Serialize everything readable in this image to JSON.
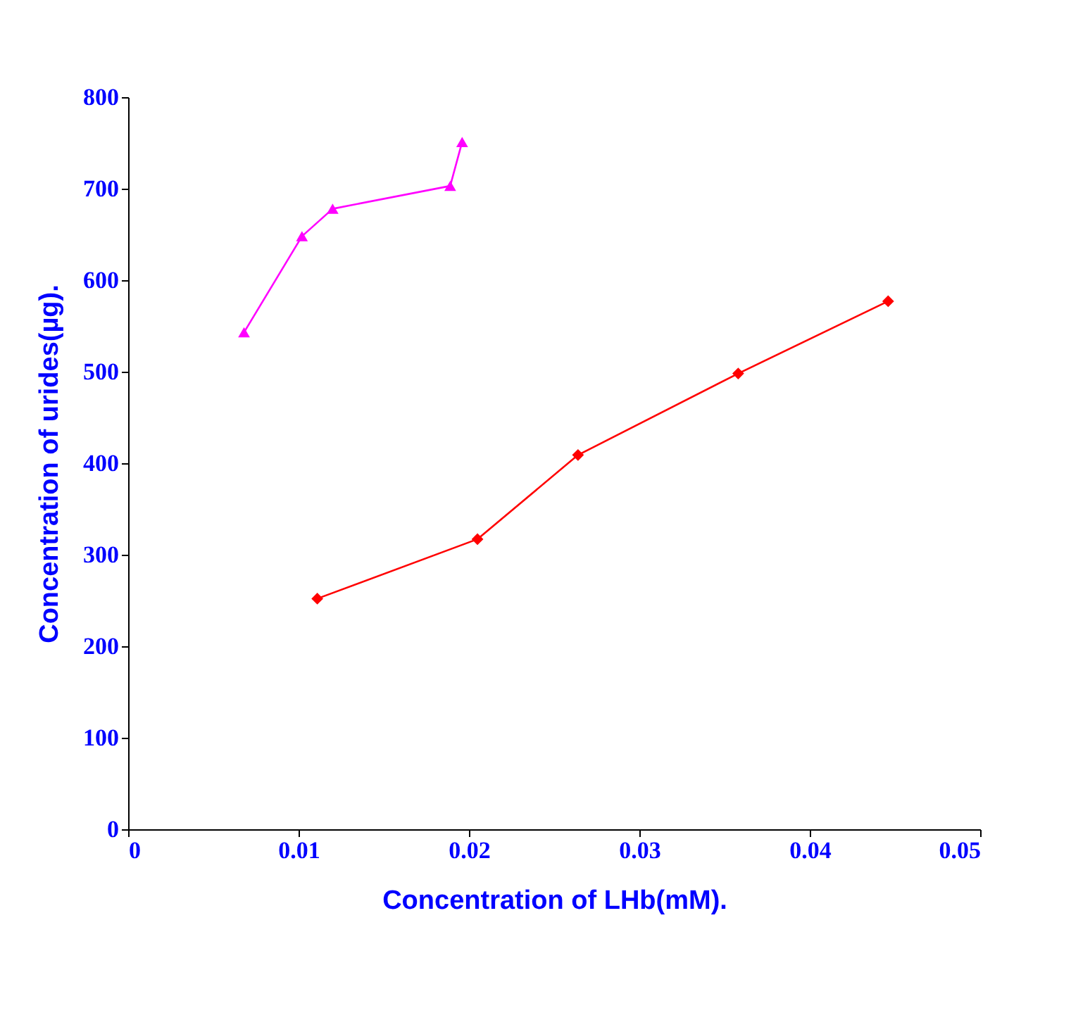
{
  "chart_data": {
    "type": "line",
    "xlabel": "Concentration of LHb(mM).",
    "ylabel": "Concentration of urides(µg).",
    "xlim": [
      0,
      0.05
    ],
    "xticks": [
      0,
      0.01,
      0.02,
      0.03,
      0.04,
      0.05
    ],
    "ylim": [
      0,
      800
    ],
    "yticks": [
      0,
      100,
      200,
      300,
      400,
      500,
      600,
      700,
      800
    ],
    "grid": false,
    "series": [
      {
        "color": "#ff00ff",
        "marker": "triangle",
        "x": [
          0.0068,
          0.0102,
          0.012,
          0.0189,
          0.0196
        ],
        "values": [
          543,
          648,
          678,
          703,
          751
        ]
      },
      {
        "color": "#ff0000",
        "marker": "diamond",
        "x": [
          0.0111,
          0.0205,
          0.0264,
          0.0358,
          0.0446
        ],
        "values": [
          252,
          317,
          409,
          498,
          577
        ]
      }
    ]
  }
}
